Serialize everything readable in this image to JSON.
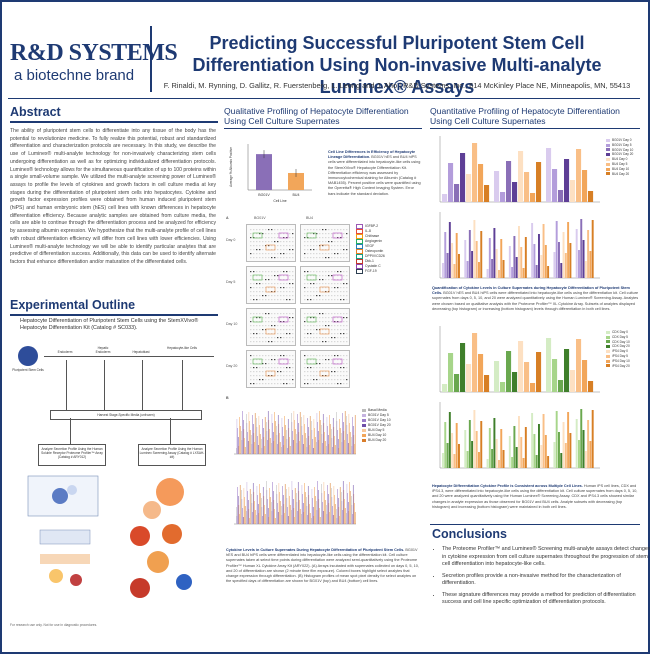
{
  "brand": {
    "logo": "R&D SYSTEMS",
    "sub": "a biotechne brand"
  },
  "title": "Predicting Successful Pluripotent Stem Cell Differentiation Using Non-invasive Multi-analyte Luminex® Assays",
  "authors": "F. Rinaldi, M. Rynning, D. Gallitz, R. Fuerstenberg, L. Leong and J. Aho  |  R&D Systems, Inc., 614 McKinley Place NE, Minneapolis, MN, 55413",
  "abstract": {
    "heading": "Abstract",
    "text": "The ability of pluripotent stem cells to differentiate into any tissue of the body has the potential to revolutionize medicine. To fully realize this potential, robust and standardized differentiation and characterization protocols are necessary. In this study, we describe the use of Luminex® multi-analyte technology for non-invasively characterizing stem cells undergoing differentiation as well as for optimizing individualized differentiation protocols. Luminex® technology allows for the simultaneous quantification of up to 100 proteins within a single small-volume sample. We utilized the multi-analyte screening power of Luminex® assays to profile the levels of cytokines and growth factors in cell culture media at key stages during the differentiation of pluripotent stem cells into hepatocytes. Cytokine and growth factor expression profiles were obtained from human induced pluripotent stem (hiPS) and human embryonic stem (hES) cell lines with known differences in hepatocyte differentiation efficiency. Because analytic samples are obtained from culture media, the cells are able to continue through the differentiation process and be analyzed for efficiency by assessing albumin expression. We hypothesize that the multi-analyte profile of cell lines with robust differentiation efficiency will differ from cell lines with lower efficiencies. Using Luminex® multi-analyte technology we will be able to identify particular analytes that are predictive of differentiation success. Additionally, this data can be used to identify alternate factors that enhance differentiation and/or maturation of the differentiated cells."
  },
  "experimental": {
    "heading": "Experimental Outline",
    "text": "Hepatocyte Differentiation of Pluripotent Stem Cells using the StemXVivo® Hepatocyte Differentiation Kit (Catalog # SC033).",
    "flow": {
      "start": "Pluripotent Stem Cells",
      "stages": [
        "Endoderm",
        "Hepatic Endoderm",
        "Hepatoblast",
        "Hepatocyte-like Cells"
      ],
      "harvest": "Harvest Stage-Specific Media (unfrozen)",
      "left_box": "Analyze Secretion Profile Using the Human Soluble Receptor Proteome Profiler™ Array (Catalog # ARY012)",
      "right_box": "Analyze Secretion Profile Using the Human Luminex Screening Assay (Catalog # LXSAH-##)"
    }
  },
  "middle": {
    "heading": "Qualitative Profiling of Hepatocyte Differentiation Using Cell Culture Supernates",
    "caption1_bold": "Cell Line Differences in Efficiency of Hepatocyte Lineage Differentiation.",
    "caption1": " BG01V hES and BU4 hiPS cells were differentiated into hepatocyte-like cells using the StemXVivo® Hepatocyte Differentiation Kit. Differentiation efficiency was assessed by immunocytochemical staining for Albumin (Catalog # MAB1455). Percent positive cells were quantified using the Operetta® High Content Imaging System. Error bars indicate the standard deviation.",
    "bar_ylabel": "Average % Albumin Positive",
    "bar_xlabel": "Cell Line",
    "bar_categories": [
      "BG01V",
      "BU4"
    ],
    "panel_label_a": "A",
    "panel_label_b": "B",
    "col_labels": [
      "BG01V",
      "BU4"
    ],
    "day_labels": [
      "Day 0",
      "Day 5",
      "Day 10",
      "Day 20"
    ],
    "legend": [
      "IGFBP-2",
      "IL-8",
      "Chitinase",
      "Angiogenin",
      "VEGF",
      "Osteopontin",
      "DPPIV/CD26",
      "Dkk-1",
      "Cystatin C",
      "FGF-19"
    ],
    "bar2_legend": [
      "Basal Media",
      "BG01V Day 5",
      "BG01V Day 10",
      "BG01V Day 20",
      "BU4 Day 5",
      "BU4 Day 10",
      "BU4 Day 20"
    ],
    "caption2_bold": "Cytokine Levels in Culture Supernates During Hepatocyte Differentiation of Pluripotent Stem Cells.",
    "caption2": " BG01V hES and BU4 hiPS cells were differentiated into hepatocyte-like cells using the differentiation kit. Cell culture supernates taken at select time points during differentiation were analyzed semi-quantitatively using the Proteome Profiler™ Human XL Cytokine Array Kit (ARY022). (A) Arrays incubated with supernates collected on days 0, 5, 10, and 20 of differentiation are shown (2 minute time film exposure). Colored boxes highlight select analytes that change expression through differentiation. (B) Histogram profiles of mean spot pixel density for select analytes on the specified days of differentiation are shown for BG01V (top) and BU4 (bottom) cell lines."
  },
  "right": {
    "heading": "Quantitative Profiling of Hepatocyte Differentiation Using Cell Culture Supernates",
    "chart_legend_a": [
      "BG01V Day 0",
      "BG01V Day 5",
      "BG01V Day 10",
      "BG01V Day 20",
      "BU4 Day 0",
      "BU4 Day 5",
      "BU4 Day 10",
      "BU4 Day 20"
    ],
    "caption1_bold": "Quantification of Cytokine Levels in Culture Supernates during Hepatocyte Differentiation of Pluripotent Stem Cells.",
    "caption1": " BG01V hES and BU4 hiPS cells were differentiated into hepatocyte-like cells using the differentiation kit. Cell culture supernates from days 0, 5, 10, and 20 were analyzed quantitatively using the Human Luminex® Screening Assay. Analytes were chosen based on qualitative analysis with the Proteome Profiler™ XL Cytokine Array. Subsets of analytes displayed decreasing (top histogram) or increasing (bottom histogram) levels through differentiation in both cell lines.",
    "chart_legend_b": [
      "CDX Day 0",
      "CDX Day 5",
      "CDX Day 10",
      "CDX Day 20",
      "iPS4 Day 0",
      "iPS4 Day 5",
      "iPS4 Day 10",
      "iPS4 Day 20"
    ],
    "caption2_bold": "Hepatocyte Differentiation Cytokine Profile is Consistent across Multiple Cell Lines.",
    "caption2": " Human iPS cell lines, CDX and iPS4.3, were differentiated into hepatocyte-like cells using the differentiation kit. Cell culture supernates from days 0, 5, 10, and 20 were analyzed quantitatively using the Human Luminex® Screening Assay. CDX and iPS4.3 cells showed similar changes in analyte expression as those observed for BG01V and BU4 cells. Analyte subsets with decreasing (top histogram) and increasing (bottom histogram) were maintained in both cell lines."
  },
  "conclusions": {
    "heading": "Conclusions",
    "items": [
      "The Proteome Profiler™ and Luminex® Screening multi-analyte assays detect changes in cytokine expression from cell culture supernates throughout the progression of stem cell differentiation into hepatocyte-like cells.",
      "Secretion profiles provide a non-invasive method for the characterization of differentiation.",
      "These signature differences may provide a method for prediction of differentiation success and cell line specific optimization of differentiation protocols."
    ]
  },
  "footer": "For research use only. Not for use in diagnostic procedures.",
  "colors": {
    "navy": "#1e3a73",
    "purple": "#8a6fb7",
    "orange": "#f2a65a",
    "green": "#6aa84f"
  },
  "chart_data": [
    {
      "type": "bar",
      "categories": [
        "BG01V",
        "BU4"
      ],
      "values": [
        78,
        37
      ],
      "xlabel": "Cell Line",
      "ylabel": "Average % Albumin Positive",
      "ylim": [
        0,
        100
      ]
    }
  ]
}
